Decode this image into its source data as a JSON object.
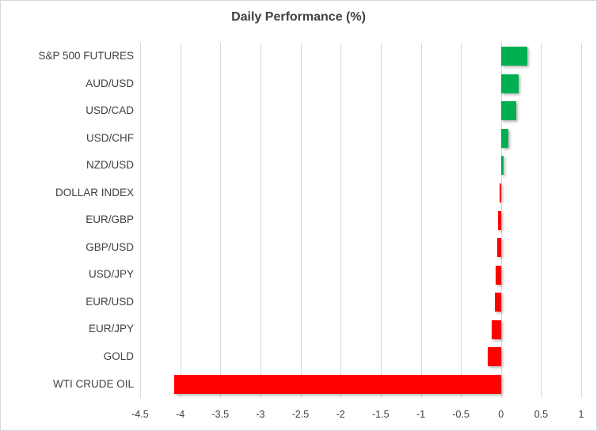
{
  "chart_data": {
    "type": "bar",
    "orientation": "horizontal",
    "title": "Daily Performance (%)",
    "xlabel": "",
    "ylabel": "",
    "xlim": [
      -4.5,
      1
    ],
    "grid": true,
    "legend": "none",
    "categories": [
      "S&P 500 FUTURES",
      "AUD/USD",
      "USD/CAD",
      "USD/CHF",
      "NZD/USD",
      "DOLLAR INDEX",
      "EUR/GBP",
      "GBP/USD",
      "USD/JPY",
      "EUR/USD",
      "EUR/JPY",
      "GOLD",
      "WTI CRUDE OIL"
    ],
    "values": [
      0.33,
      0.22,
      0.19,
      0.09,
      0.03,
      -0.02,
      -0.04,
      -0.05,
      -0.07,
      -0.08,
      -0.12,
      -0.17,
      -4.08
    ],
    "x_ticks": [
      {
        "value": -4.5,
        "label": "-4.5"
      },
      {
        "value": -4,
        "label": "-4"
      },
      {
        "value": -3.5,
        "label": "-3.5"
      },
      {
        "value": -3,
        "label": "-3"
      },
      {
        "value": -2.5,
        "label": "-2.5"
      },
      {
        "value": -2,
        "label": "-2"
      },
      {
        "value": -1.5,
        "label": "-1.5"
      },
      {
        "value": -1,
        "label": "-1"
      },
      {
        "value": -0.5,
        "label": "-0.5"
      },
      {
        "value": 0,
        "label": "0"
      },
      {
        "value": 0.5,
        "label": "0.5"
      },
      {
        "value": 1,
        "label": "1"
      }
    ],
    "colors": {
      "positive_bar": "#00b050",
      "negative_bar": "#ff0000",
      "gridline": "#d9d9d9",
      "text": "#404040",
      "frame_border": "#d7d7d7",
      "background": "#ffffff"
    }
  }
}
